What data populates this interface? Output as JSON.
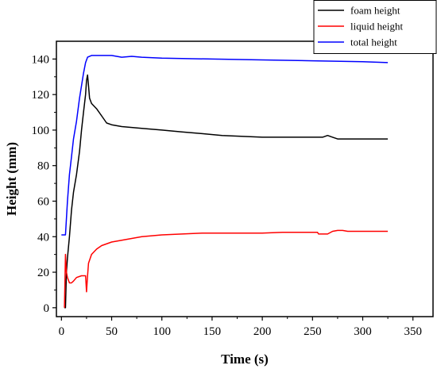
{
  "chart_data": {
    "type": "line",
    "title": "",
    "xlabel": "Time (s)",
    "ylabel": "Height (mm)",
    "xlim": [
      -5,
      370
    ],
    "ylim": [
      -5,
      150
    ],
    "x_ticks": [
      0,
      50,
      100,
      150,
      200,
      250,
      300,
      350
    ],
    "y_ticks": [
      0,
      20,
      40,
      60,
      80,
      100,
      120,
      140
    ],
    "grid": false,
    "legend_position": "top-right",
    "series": [
      {
        "name": "foam height",
        "color": "#000000",
        "points": [
          [
            3,
            0
          ],
          [
            4,
            0
          ],
          [
            5,
            20
          ],
          [
            6,
            28
          ],
          [
            8,
            40
          ],
          [
            10,
            55
          ],
          [
            12,
            65
          ],
          [
            15,
            75
          ],
          [
            18,
            88
          ],
          [
            20,
            100
          ],
          [
            22,
            110
          ],
          [
            24,
            120
          ],
          [
            25,
            128
          ],
          [
            26,
            131
          ],
          [
            27,
            125
          ],
          [
            28,
            118
          ],
          [
            30,
            115
          ],
          [
            35,
            112
          ],
          [
            40,
            108
          ],
          [
            45,
            104
          ],
          [
            50,
            103
          ],
          [
            60,
            102
          ],
          [
            80,
            101
          ],
          [
            100,
            100
          ],
          [
            120,
            99
          ],
          [
            140,
            98
          ],
          [
            160,
            97
          ],
          [
            200,
            96
          ],
          [
            220,
            96
          ],
          [
            240,
            96
          ],
          [
            260,
            96
          ],
          [
            265,
            97
          ],
          [
            270,
            96
          ],
          [
            275,
            95
          ],
          [
            290,
            95
          ],
          [
            300,
            95
          ],
          [
            325,
            95
          ]
        ]
      },
      {
        "name": "liquid height",
        "color": "#ff0000",
        "points": [
          [
            3,
            0
          ],
          [
            4,
            30
          ],
          [
            5,
            20
          ],
          [
            6,
            17
          ],
          [
            8,
            14
          ],
          [
            10,
            14
          ],
          [
            12,
            15
          ],
          [
            15,
            17
          ],
          [
            20,
            18
          ],
          [
            24,
            18
          ],
          [
            25,
            9
          ],
          [
            26,
            18
          ],
          [
            27,
            25
          ],
          [
            30,
            30
          ],
          [
            35,
            33
          ],
          [
            40,
            35
          ],
          [
            50,
            37
          ],
          [
            60,
            38
          ],
          [
            80,
            40
          ],
          [
            100,
            41
          ],
          [
            120,
            41.5
          ],
          [
            140,
            42
          ],
          [
            200,
            42
          ],
          [
            220,
            42.5
          ],
          [
            240,
            42.5
          ],
          [
            255,
            42.5
          ],
          [
            256,
            41.5
          ],
          [
            265,
            41.5
          ],
          [
            270,
            43
          ],
          [
            275,
            43.5
          ],
          [
            280,
            43.5
          ],
          [
            285,
            43
          ],
          [
            325,
            43
          ]
        ]
      },
      {
        "name": "total height",
        "color": "#0000ff",
        "points": [
          [
            0,
            41
          ],
          [
            4,
            41
          ],
          [
            6,
            60
          ],
          [
            8,
            75
          ],
          [
            10,
            85
          ],
          [
            12,
            95
          ],
          [
            15,
            105
          ],
          [
            18,
            118
          ],
          [
            20,
            125
          ],
          [
            22,
            132
          ],
          [
            24,
            138
          ],
          [
            26,
            141
          ],
          [
            30,
            142
          ],
          [
            50,
            142
          ],
          [
            60,
            141
          ],
          [
            70,
            141.5
          ],
          [
            80,
            141
          ],
          [
            100,
            140.5
          ],
          [
            150,
            140
          ],
          [
            200,
            139.5
          ],
          [
            250,
            139
          ],
          [
            300,
            138.5
          ],
          [
            325,
            138
          ]
        ]
      }
    ]
  }
}
